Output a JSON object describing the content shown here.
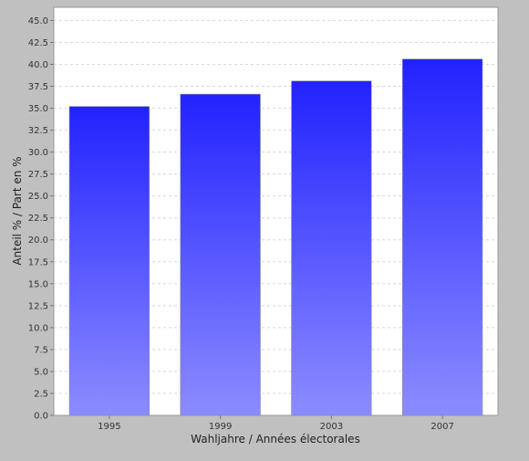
{
  "chart_data": {
    "type": "bar",
    "title": "",
    "xlabel": "Wahljahre / Années électorales",
    "ylabel": "Anteil % / Part en %",
    "categories": [
      "1995",
      "1999",
      "2003",
      "2007"
    ],
    "series": [
      {
        "values": [
          35.2,
          36.6,
          38.1,
          40.6
        ]
      }
    ],
    "ylim": [
      0,
      46.5
    ],
    "yticks": [
      "0.0",
      "2.5",
      "5.0",
      "7.5",
      "10.0",
      "12.5",
      "15.0",
      "17.5",
      "20.0",
      "22.5",
      "25.0",
      "27.5",
      "30.0",
      "32.5",
      "35.0",
      "37.5",
      "40.0",
      "42.5",
      "45.0"
    ],
    "grid": true,
    "legend": "none",
    "colors": {
      "background": "#c0c0c0",
      "plot_background": "#ffffff",
      "bar_top": "#2222ff",
      "bar_bottom": "#8c8cff",
      "grid": "#d8d8d8"
    }
  }
}
